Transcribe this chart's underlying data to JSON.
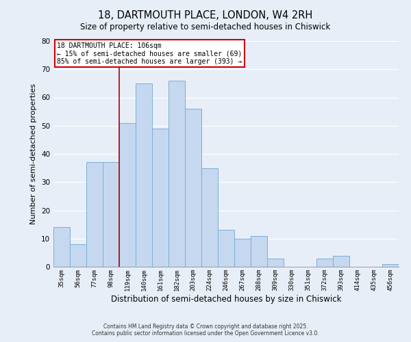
{
  "title": "18, DARTMOUTH PLACE, LONDON, W4 2RH",
  "subtitle": "Size of property relative to semi-detached houses in Chiswick",
  "xlabel": "Distribution of semi-detached houses by size in Chiswick",
  "ylabel": "Number of semi-detached properties",
  "bar_labels": [
    "35sqm",
    "56sqm",
    "77sqm",
    "98sqm",
    "119sqm",
    "140sqm",
    "161sqm",
    "182sqm",
    "203sqm",
    "224sqm",
    "246sqm",
    "267sqm",
    "288sqm",
    "309sqm",
    "330sqm",
    "351sqm",
    "372sqm",
    "393sqm",
    "414sqm",
    "435sqm",
    "456sqm"
  ],
  "bar_values": [
    14,
    8,
    37,
    37,
    51,
    65,
    49,
    66,
    56,
    35,
    13,
    10,
    11,
    3,
    0,
    0,
    3,
    4,
    0,
    0,
    1
  ],
  "bar_color": "#c5d8f0",
  "bar_edge_color": "#7aafd4",
  "ylim": [
    0,
    80
  ],
  "yticks": [
    0,
    10,
    20,
    30,
    40,
    50,
    60,
    70,
    80
  ],
  "vline_x_index": 3.5,
  "vline_color": "#aa0000",
  "annotation_title": "18 DARTMOUTH PLACE: 106sqm",
  "annotation_line1": "← 15% of semi-detached houses are smaller (69)",
  "annotation_line2": "85% of semi-detached houses are larger (393) →",
  "annotation_box_facecolor": "#ffffff",
  "annotation_box_edgecolor": "#cc0000",
  "footer1": "Contains HM Land Registry data © Crown copyright and database right 2025.",
  "footer2": "Contains public sector information licensed under the Open Government Licence v3.0.",
  "bg_color": "#e8eef8",
  "plot_bg_color": "#e8eef8",
  "grid_color": "#ffffff",
  "title_fontsize": 10,
  "subtitle_fontsize": 9
}
